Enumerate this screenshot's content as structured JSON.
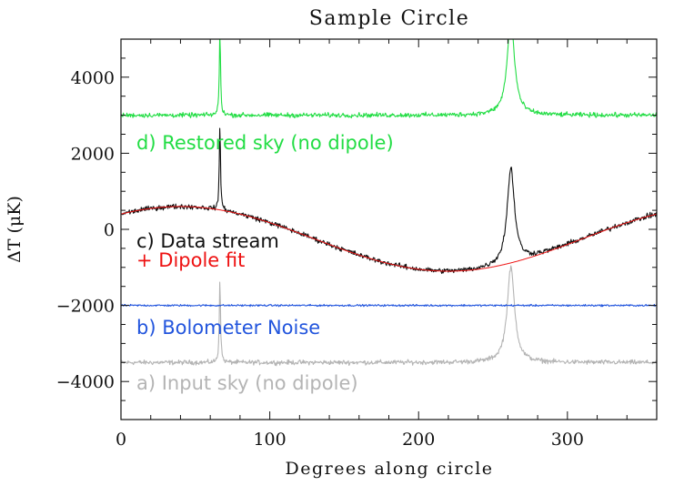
{
  "chart_data": {
    "type": "line",
    "title": "Sample Circle",
    "xlabel": "Degrees along circle",
    "ylabel": "ΔT (μK)",
    "xlim": [
      0,
      360
    ],
    "ylim": [
      -5000,
      5000
    ],
    "xticks": [
      0,
      100,
      200,
      300
    ],
    "yticks": [
      -4000,
      -2000,
      0,
      2000,
      4000
    ],
    "grid": false,
    "colors": {
      "restored": "#22dd44",
      "data": "#111111",
      "dipole": "#ee1111",
      "noise": "#2255dd",
      "input": "#b4b4b4"
    },
    "annotations": [
      {
        "text": "d) Restored sky (no dipole)",
        "series": "restored"
      },
      {
        "text": "c) Data stream",
        "series": "data"
      },
      {
        "text": "+ Dipole fit",
        "series": "dipole"
      },
      {
        "text": "b) Bolometer Noise",
        "series": "noise"
      },
      {
        "text": "a) Input sky (no dipole)",
        "series": "input"
      }
    ],
    "series": [
      {
        "id": "restored",
        "baseline": 3000,
        "noise_amplitude": 90,
        "peaks": [
          {
            "x": 66.5,
            "height": 2200,
            "width": 0.5
          },
          {
            "x": 262,
            "height": 2500,
            "width": 3
          }
        ]
      },
      {
        "id": "data",
        "dipole": true,
        "noise_amplitude": 100,
        "peaks": [
          {
            "x": 66.5,
            "height": 2200,
            "width": 0.5
          },
          {
            "x": 262,
            "height": 2500,
            "width": 3
          }
        ]
      },
      {
        "id": "dipole",
        "mean": -250,
        "amplitude": 850,
        "min_at_deg": 220
      },
      {
        "id": "noise",
        "baseline": -2000,
        "noise_amplitude": 35
      },
      {
        "id": "input",
        "baseline": -3500,
        "noise_amplitude": 90,
        "peaks": [
          {
            "x": 66.5,
            "height": 2200,
            "width": 0.5
          },
          {
            "x": 262,
            "height": 2500,
            "width": 3
          }
        ]
      }
    ]
  }
}
